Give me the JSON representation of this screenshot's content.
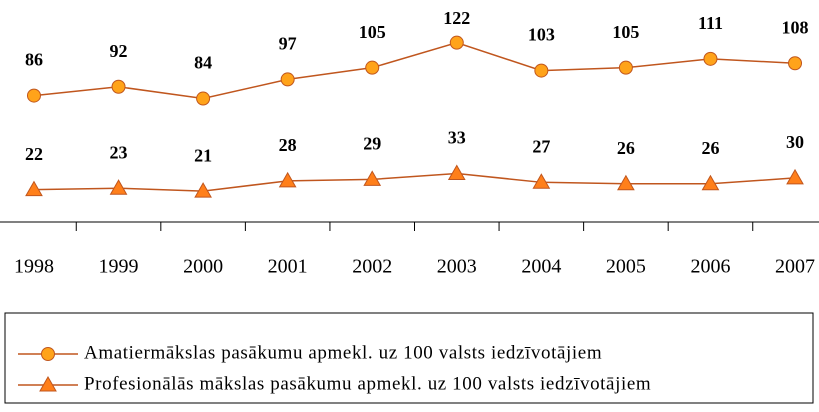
{
  "chart_data": {
    "type": "line",
    "categories": [
      "1998",
      "1999",
      "2000",
      "2001",
      "2002",
      "2003",
      "2004",
      "2005",
      "2006",
      "2007"
    ],
    "series": [
      {
        "name": "Amatiermākslas pasākumu apmekl. uz 100 valsts iedzīvotājiem",
        "color": "#c0561e",
        "marker_color": "#ffa31a",
        "marker": "circle",
        "values": [
          86,
          92,
          84,
          97,
          105,
          122,
          103,
          105,
          111,
          108
        ]
      },
      {
        "name": "Profesionālās mākslas pasākumu apmekl. uz 100 valsts iedzīvotājiem",
        "color": "#c0561e",
        "marker_color": "#ff7f1a",
        "marker": "triangle",
        "values": [
          22,
          23,
          21,
          28,
          29,
          33,
          27,
          26,
          26,
          30
        ]
      }
    ],
    "ylim": [
      0,
      150
    ]
  }
}
